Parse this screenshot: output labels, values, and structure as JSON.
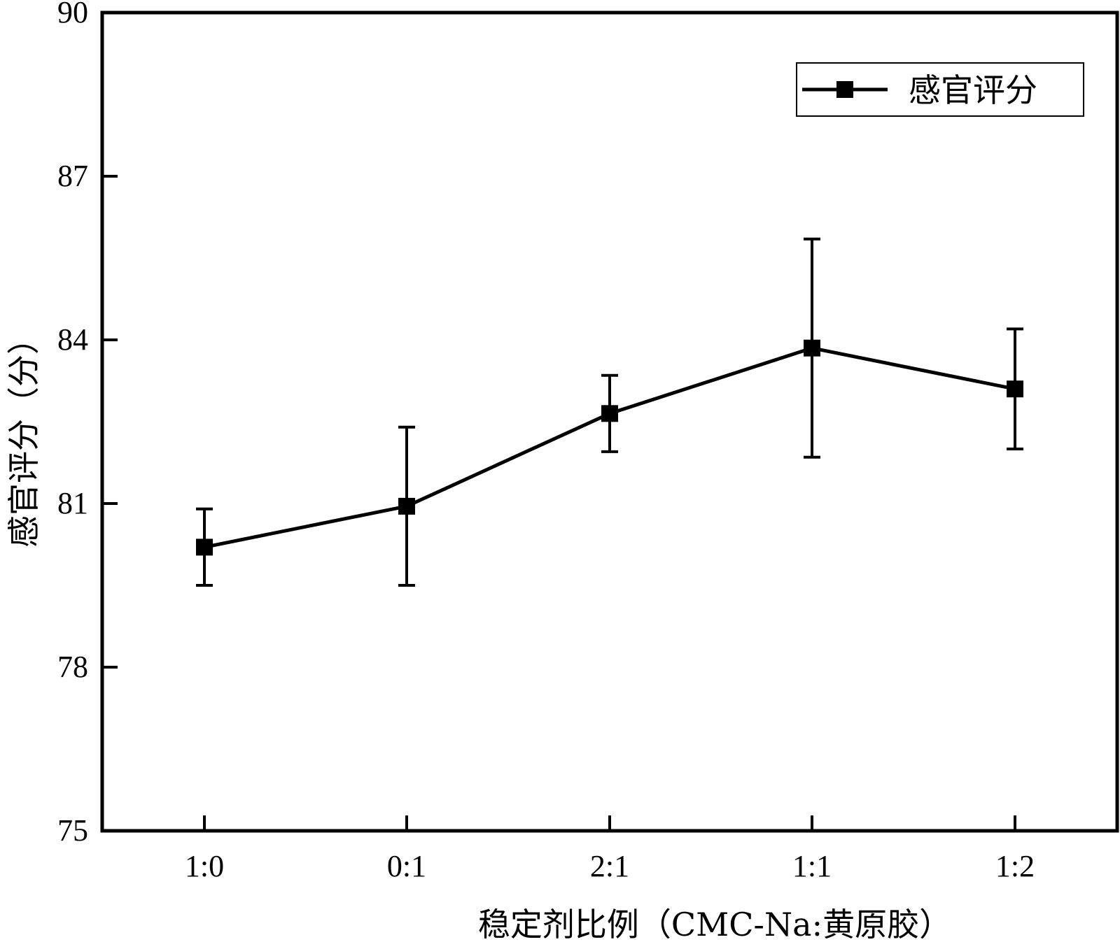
{
  "chart_data": {
    "type": "line",
    "categories": [
      "1:0",
      "0:1",
      "2:1",
      "1:1",
      "1:2"
    ],
    "series": [
      {
        "name": "感官评分",
        "values": [
          80.2,
          80.95,
          82.65,
          83.85,
          83.1
        ],
        "error_upper": [
          80.9,
          82.4,
          83.35,
          85.85,
          84.2
        ],
        "error_lower": [
          79.5,
          79.5,
          81.95,
          81.85,
          82.0
        ],
        "color": "#000000",
        "marker": "square"
      }
    ],
    "xlabel": "稳定剂比例（CMC-Na:黄原胶）",
    "ylabel": "感官评分（分）",
    "ylim": [
      75,
      90
    ],
    "yticks": [
      "75",
      "78",
      "81",
      "84",
      "87",
      "90"
    ],
    "legend_position": "top-right",
    "grid": false
  }
}
